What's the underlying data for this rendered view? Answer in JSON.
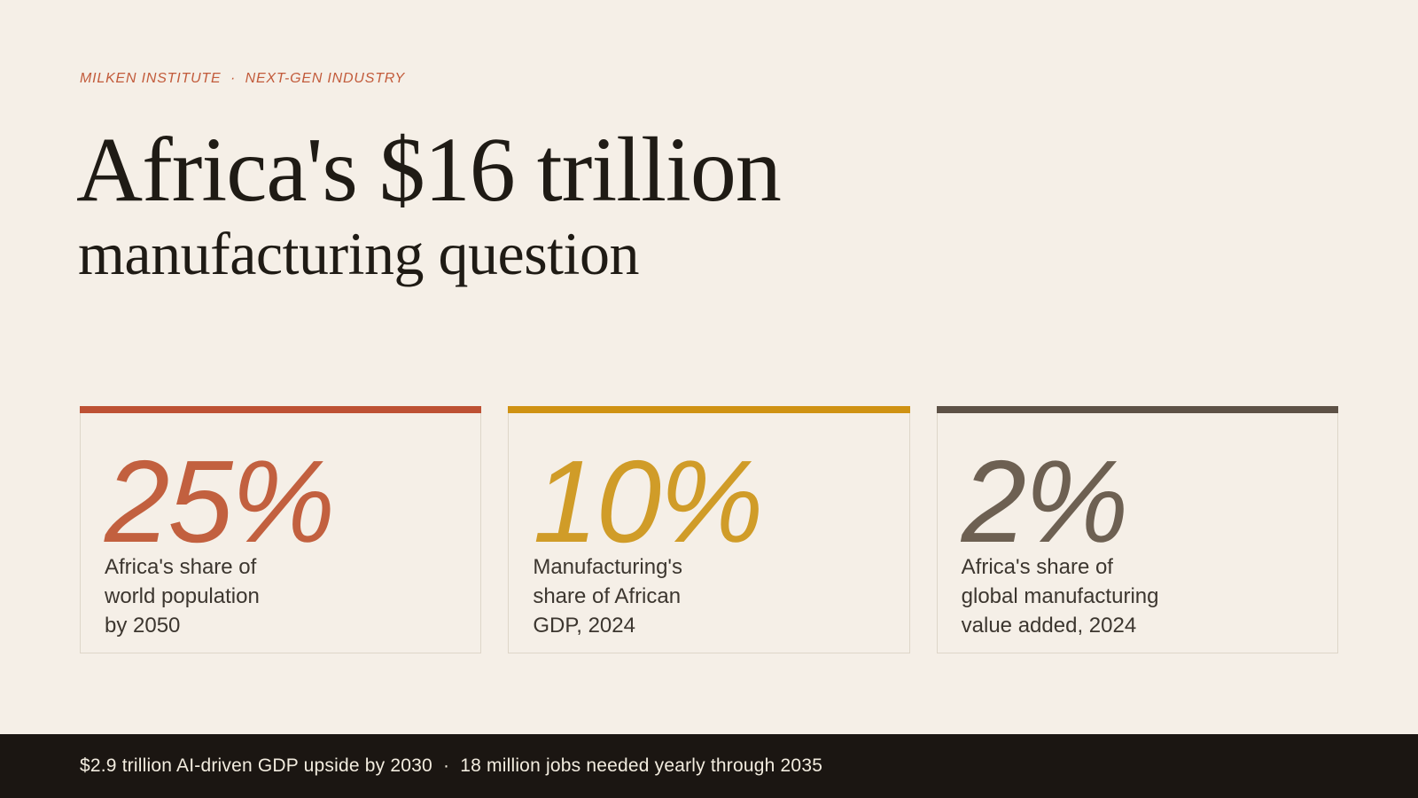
{
  "page": {
    "eyebrow": "MILKEN INSTITUTE  ·  NEXT-GEN INDUSTRY",
    "title_line1": "Africa's $16 trillion",
    "title_line2": "manufacturing question"
  },
  "palette": {
    "bg": "#f5efe7",
    "ink": "#1f1b15",
    "eyebrow": "#c25b3b",
    "muted": "#3c362f",
    "border": "#ded6c9",
    "footer-bg": "#1b1612",
    "footer-ink": "#f2ecdf"
  },
  "cards": [
    {
      "value": "25%",
      "caption": "Africa's share of\nworld population\nby 2050",
      "bar_color": "#bd5134",
      "value_color": "#c2603f"
    },
    {
      "value": "10%",
      "caption": "Manufacturing's\nshare of African\nGDP, 2024",
      "bar_color": "#cf9213",
      "value_color": "#d09c28"
    },
    {
      "value": "2%",
      "caption": "Africa's share of\nglobal manufacturing\nvalue added, 2024",
      "bar_color": "#5d5146",
      "value_color": "#6d6052"
    }
  ],
  "footer": {
    "text": "$2.9 trillion AI-driven GDP upside by 2030  ·  18 million jobs needed yearly through 2035"
  }
}
